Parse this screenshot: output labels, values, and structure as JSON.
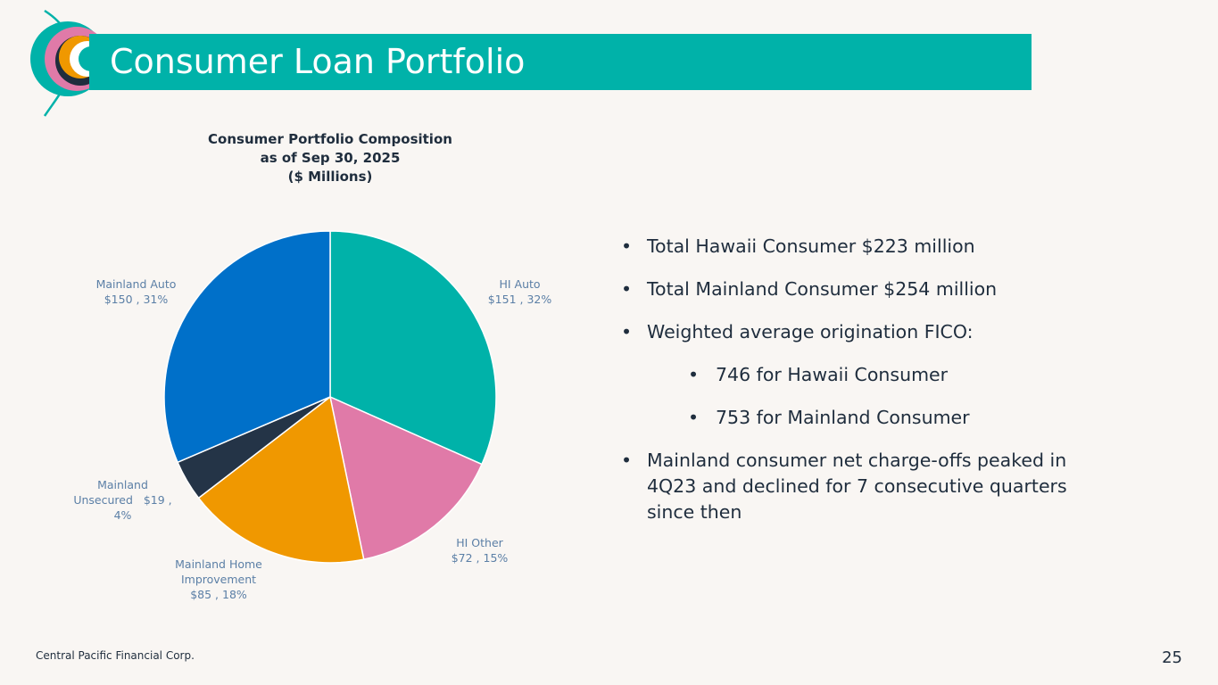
{
  "page": {
    "title": "Consumer Loan Portfolio",
    "footer": "Central Pacific Financial Corp.",
    "page_number": "25"
  },
  "colors": {
    "title_bar": "#00b2a9",
    "background": "#f9f6f3",
    "text_dark": "#1f2d3d",
    "label_blue": "#5b7fa6"
  },
  "chart_data": {
    "type": "pie",
    "title_lines": [
      "Consumer Portfolio Composition",
      "as of Sep 30, 2025",
      "($ Millions)"
    ],
    "slices": [
      {
        "name": "HI Auto",
        "value": 151,
        "percent": 32,
        "color": "#00b2a9",
        "label_lines": [
          "HI Auto",
          "$151 , 32%"
        ]
      },
      {
        "name": "HI Other",
        "value": 72,
        "percent": 15,
        "color": "#e07aa8",
        "label_lines": [
          "HI Other",
          "$72 , 15%"
        ]
      },
      {
        "name": "Mainland Home Improvement",
        "value": 85,
        "percent": 18,
        "color": "#f09800",
        "label_lines": [
          "Mainland Home",
          "Improvement",
          "$85 , 18%"
        ]
      },
      {
        "name": "Mainland Unsecured",
        "value": 19,
        "percent": 4,
        "color": "#243447",
        "label_lines": [
          "Mainland",
          "Unsecured   $19 ,",
          "4%"
        ]
      },
      {
        "name": "Mainland Auto",
        "value": 150,
        "percent": 31,
        "color": "#0070c9",
        "label_lines": [
          "Mainland Auto",
          "$150 , 31%"
        ]
      }
    ]
  },
  "bullets": [
    {
      "level": 1,
      "text": "Total Hawaii Consumer $223 million"
    },
    {
      "level": 1,
      "text": "Total Mainland Consumer $254 million"
    },
    {
      "level": 1,
      "text": "Weighted average origination FICO:"
    },
    {
      "level": 2,
      "text": "746 for Hawaii Consumer"
    },
    {
      "level": 2,
      "text": "753 for Mainland Consumer"
    },
    {
      "level": 1,
      "text": "Mainland consumer net charge-offs peaked in 4Q23 and declined for 7 consecutive quarters since then"
    }
  ],
  "bullet_glyph": "•"
}
